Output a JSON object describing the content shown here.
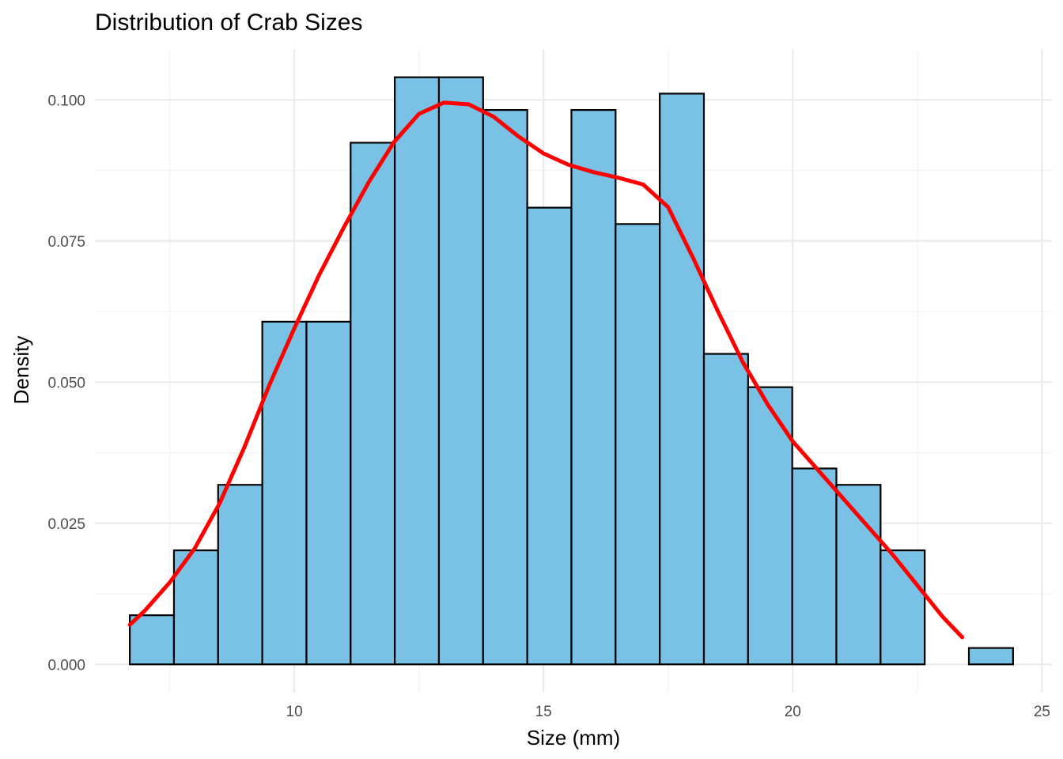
{
  "chart_data": {
    "type": "bar",
    "title": "Distribution of Crab Sizes",
    "xlabel": "Size (mm)",
    "ylabel": "Density",
    "xlim": [
      6.0,
      25.2
    ],
    "ylim": [
      -0.005,
      0.109
    ],
    "x_ticks": [
      {
        "value": 10,
        "label": "10"
      },
      {
        "value": 15,
        "label": "15"
      },
      {
        "value": 20,
        "label": "20"
      },
      {
        "value": 25,
        "label": "25"
      }
    ],
    "y_ticks": [
      {
        "value": 0.0,
        "label": "0.000"
      },
      {
        "value": 0.025,
        "label": "0.025"
      },
      {
        "value": 0.05,
        "label": "0.050"
      },
      {
        "value": 0.075,
        "label": "0.075"
      },
      {
        "value": 0.1,
        "label": "0.100"
      }
    ],
    "x_minor": [
      7.5,
      12.5,
      17.5,
      22.5
    ],
    "y_minor": [
      0.0125,
      0.0375,
      0.0625,
      0.0875
    ],
    "grid": true,
    "bin_width": 0.886,
    "bins": [
      {
        "x0": 6.7,
        "density": 0.0087
      },
      {
        "x0": 7.586,
        "density": 0.0202
      },
      {
        "x0": 8.472,
        "density": 0.0318
      },
      {
        "x0": 9.358,
        "density": 0.0607
      },
      {
        "x0": 10.244,
        "density": 0.0607
      },
      {
        "x0": 11.13,
        "density": 0.0924
      },
      {
        "x0": 12.016,
        "density": 0.104
      },
      {
        "x0": 12.902,
        "density": 0.104
      },
      {
        "x0": 13.788,
        "density": 0.0982
      },
      {
        "x0": 14.674,
        "density": 0.0809
      },
      {
        "x0": 15.56,
        "density": 0.0982
      },
      {
        "x0": 16.446,
        "density": 0.078
      },
      {
        "x0": 17.332,
        "density": 0.1011
      },
      {
        "x0": 18.218,
        "density": 0.055
      },
      {
        "x0": 19.104,
        "density": 0.0491
      },
      {
        "x0": 19.99,
        "density": 0.0347
      },
      {
        "x0": 20.876,
        "density": 0.0318
      },
      {
        "x0": 21.762,
        "density": 0.0202
      },
      {
        "x0": 22.648,
        "density": 0.0
      },
      {
        "x0": 23.534,
        "density": 0.0029
      }
    ],
    "density_curve": {
      "color": "#ff0000",
      "x": [
        6.7,
        7.0,
        7.5,
        8.0,
        8.5,
        9.0,
        9.5,
        10.0,
        10.5,
        11.0,
        11.5,
        12.0,
        12.5,
        13.0,
        13.5,
        14.0,
        14.5,
        15.0,
        15.5,
        16.0,
        16.5,
        17.0,
        17.5,
        18.0,
        18.5,
        19.0,
        19.5,
        20.0,
        20.5,
        21.0,
        21.5,
        22.0,
        22.5,
        23.0,
        23.4
      ],
      "y": [
        0.007,
        0.0095,
        0.0145,
        0.0205,
        0.0285,
        0.0385,
        0.0495,
        0.0595,
        0.069,
        0.0775,
        0.0855,
        0.0925,
        0.0975,
        0.0995,
        0.0992,
        0.097,
        0.0935,
        0.0905,
        0.0885,
        0.0872,
        0.0862,
        0.085,
        0.081,
        0.072,
        0.0625,
        0.0535,
        0.046,
        0.0395,
        0.0345,
        0.0295,
        0.0245,
        0.0195,
        0.014,
        0.0085,
        0.0048
      ]
    },
    "bar_fill": "#7ac2e5",
    "bar_outline": "#000000"
  }
}
